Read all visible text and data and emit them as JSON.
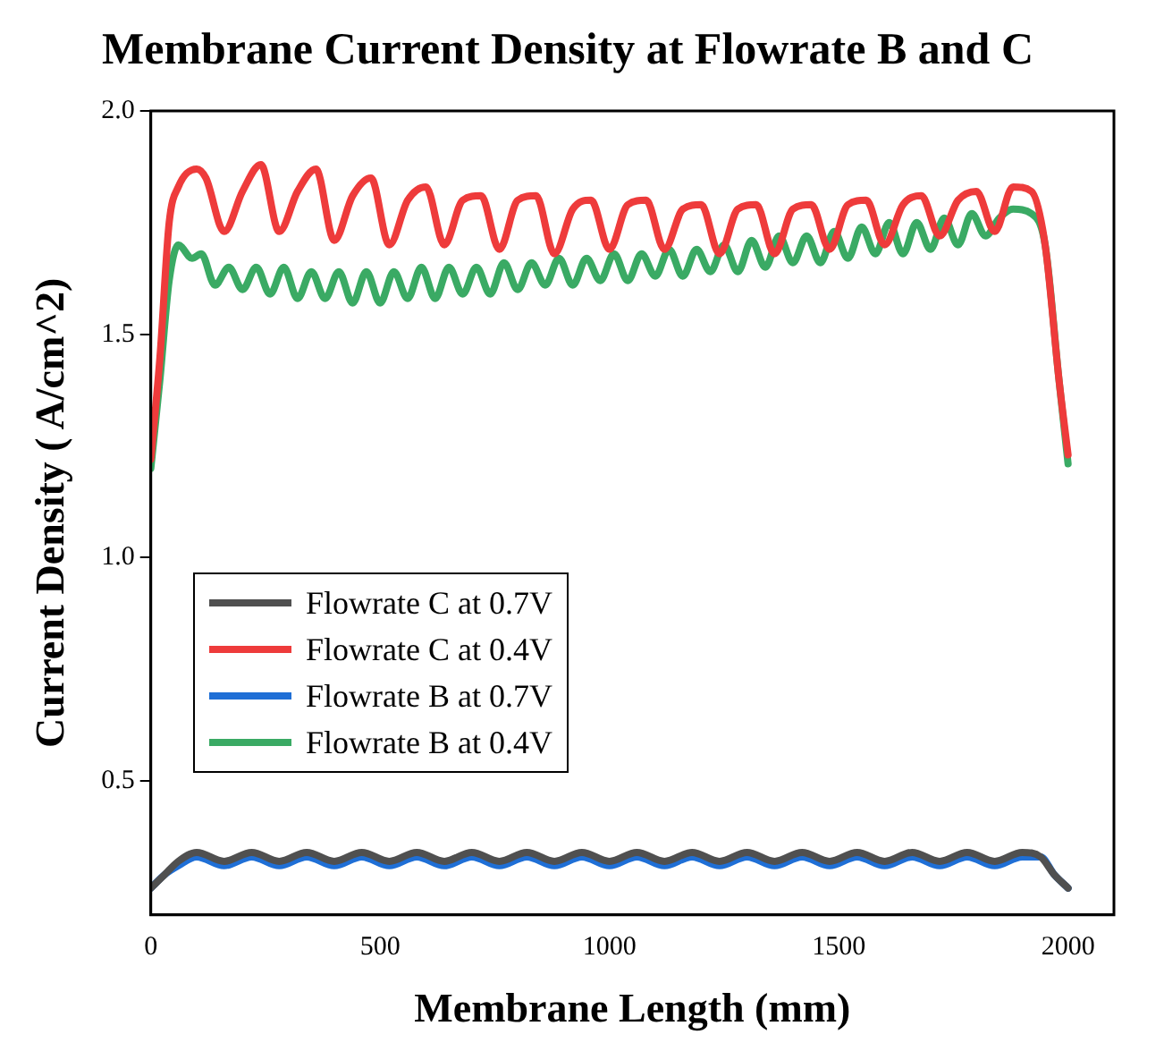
{
  "chart_data": {
    "type": "line",
    "title": "Membrane Current Density at Flowrate B and C",
    "xlabel": "Membrane Length (mm)",
    "ylabel": "Current Density ( A/cm^2)",
    "xlim": [
      0,
      2100
    ],
    "xticks": [
      0,
      500,
      1000,
      1500,
      2000
    ],
    "ylim": [
      0.2,
      2.0
    ],
    "yticks": [
      {
        "value": 0.5,
        "label": "0.5"
      },
      {
        "value": 1.0,
        "label": "1.0"
      },
      {
        "value": 1.5,
        "label": "1.5"
      },
      {
        "value": 2.0,
        "label": "2.0"
      }
    ],
    "grid": false,
    "legend": "left",
    "marker": "none",
    "line_style": "solid",
    "series": [
      {
        "name": "Flowrate C at 0.7V",
        "color": "#505050",
        "x": [
          0,
          30,
          60,
          100,
          160,
          220,
          280,
          340,
          400,
          460,
          520,
          580,
          640,
          700,
          760,
          820,
          880,
          940,
          1000,
          1060,
          1120,
          1180,
          1240,
          1300,
          1360,
          1420,
          1480,
          1540,
          1600,
          1660,
          1720,
          1780,
          1840,
          1900,
          1940,
          1970,
          2000
        ],
        "values": [
          0.26,
          0.29,
          0.32,
          0.34,
          0.32,
          0.34,
          0.32,
          0.34,
          0.32,
          0.34,
          0.32,
          0.34,
          0.32,
          0.34,
          0.32,
          0.34,
          0.32,
          0.34,
          0.32,
          0.34,
          0.32,
          0.34,
          0.32,
          0.34,
          0.32,
          0.34,
          0.32,
          0.34,
          0.32,
          0.34,
          0.32,
          0.34,
          0.32,
          0.34,
          0.33,
          0.29,
          0.26
        ]
      },
      {
        "name": "Flowrate C at 0.4V",
        "color": "#ee3b3b",
        "x": [
          0,
          20,
          40,
          60,
          100,
          120,
          160,
          200,
          240,
          280,
          320,
          360,
          400,
          440,
          480,
          520,
          560,
          600,
          640,
          680,
          720,
          760,
          800,
          840,
          880,
          920,
          960,
          1000,
          1040,
          1080,
          1120,
          1160,
          1200,
          1240,
          1280,
          1320,
          1360,
          1400,
          1440,
          1480,
          1520,
          1560,
          1600,
          1640,
          1680,
          1720,
          1760,
          1800,
          1840,
          1880,
          1920,
          1950,
          1980,
          2000
        ],
        "values": [
          1.22,
          1.45,
          1.75,
          1.83,
          1.87,
          1.85,
          1.73,
          1.82,
          1.88,
          1.73,
          1.82,
          1.87,
          1.71,
          1.81,
          1.85,
          1.7,
          1.8,
          1.83,
          1.7,
          1.8,
          1.81,
          1.69,
          1.8,
          1.81,
          1.68,
          1.78,
          1.8,
          1.69,
          1.79,
          1.8,
          1.69,
          1.78,
          1.79,
          1.68,
          1.78,
          1.79,
          1.68,
          1.78,
          1.79,
          1.69,
          1.79,
          1.8,
          1.7,
          1.79,
          1.81,
          1.72,
          1.8,
          1.82,
          1.73,
          1.83,
          1.82,
          1.7,
          1.4,
          1.23
        ]
      },
      {
        "name": "Flowrate B at 0.7V",
        "color": "#1f6fd6",
        "x": [
          0,
          30,
          60,
          100,
          160,
          220,
          280,
          340,
          400,
          460,
          520,
          580,
          640,
          700,
          760,
          820,
          880,
          940,
          1000,
          1060,
          1120,
          1180,
          1240,
          1300,
          1360,
          1420,
          1480,
          1540,
          1600,
          1660,
          1720,
          1780,
          1840,
          1900,
          1940,
          1970,
          2000
        ],
        "values": [
          0.26,
          0.29,
          0.31,
          0.33,
          0.31,
          0.33,
          0.31,
          0.33,
          0.31,
          0.33,
          0.31,
          0.33,
          0.31,
          0.33,
          0.31,
          0.33,
          0.31,
          0.33,
          0.31,
          0.33,
          0.31,
          0.33,
          0.31,
          0.33,
          0.31,
          0.33,
          0.31,
          0.33,
          0.31,
          0.33,
          0.31,
          0.33,
          0.31,
          0.33,
          0.33,
          0.29,
          0.26
        ]
      },
      {
        "name": "Flowrate B at 0.4V",
        "color": "#3aaa64",
        "x": [
          0,
          20,
          40,
          60,
          90,
          110,
          140,
          170,
          200,
          230,
          260,
          290,
          320,
          350,
          380,
          410,
          440,
          470,
          500,
          530,
          560,
          590,
          620,
          650,
          680,
          710,
          740,
          770,
          800,
          830,
          860,
          890,
          920,
          950,
          980,
          1010,
          1040,
          1070,
          1100,
          1130,
          1160,
          1190,
          1220,
          1250,
          1280,
          1310,
          1340,
          1370,
          1400,
          1430,
          1460,
          1490,
          1520,
          1550,
          1580,
          1610,
          1640,
          1670,
          1700,
          1730,
          1760,
          1790,
          1820,
          1850,
          1880,
          1920,
          1950,
          1980,
          2000
        ],
        "values": [
          1.2,
          1.4,
          1.62,
          1.7,
          1.67,
          1.68,
          1.61,
          1.65,
          1.6,
          1.65,
          1.59,
          1.65,
          1.58,
          1.64,
          1.58,
          1.64,
          1.57,
          1.64,
          1.57,
          1.64,
          1.58,
          1.65,
          1.58,
          1.65,
          1.59,
          1.65,
          1.59,
          1.66,
          1.6,
          1.66,
          1.61,
          1.67,
          1.61,
          1.67,
          1.62,
          1.68,
          1.62,
          1.68,
          1.63,
          1.69,
          1.63,
          1.69,
          1.64,
          1.7,
          1.64,
          1.71,
          1.65,
          1.72,
          1.66,
          1.72,
          1.66,
          1.73,
          1.67,
          1.74,
          1.68,
          1.75,
          1.68,
          1.75,
          1.69,
          1.76,
          1.7,
          1.77,
          1.72,
          1.76,
          1.78,
          1.77,
          1.7,
          1.4,
          1.21
        ]
      }
    ]
  }
}
